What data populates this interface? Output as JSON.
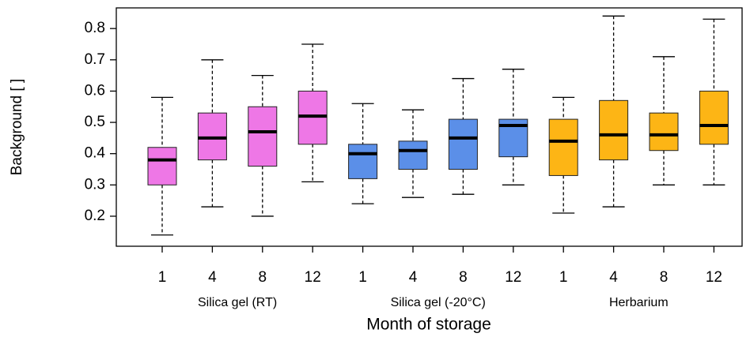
{
  "chart_data": {
    "type": "box",
    "ylabel": "Background [ ]",
    "xlabel": "Month of storage",
    "ylim": [
      0.104,
      0.866
    ],
    "yticks": [
      0.2,
      0.3,
      0.4,
      0.5,
      0.6,
      0.7,
      0.8
    ],
    "groups": [
      {
        "name": "Silica gel (RT)",
        "color": "#ee77e6",
        "categories": [
          "1",
          "4",
          "8",
          "12"
        ],
        "min": [
          0.14,
          0.23,
          0.2,
          0.31
        ],
        "q1": [
          0.3,
          0.38,
          0.36,
          0.43
        ],
        "median": [
          0.38,
          0.45,
          0.47,
          0.52
        ],
        "q3": [
          0.42,
          0.53,
          0.55,
          0.6
        ],
        "max": [
          0.58,
          0.7,
          0.65,
          0.75
        ]
      },
      {
        "name": "Silica gel (-20°C)",
        "color": "#5b8fe8",
        "categories": [
          "1",
          "4",
          "8",
          "12"
        ],
        "min": [
          0.24,
          0.26,
          0.27,
          0.3
        ],
        "q1": [
          0.32,
          0.35,
          0.35,
          0.39
        ],
        "median": [
          0.4,
          0.41,
          0.45,
          0.49
        ],
        "q3": [
          0.43,
          0.44,
          0.51,
          0.51
        ],
        "max": [
          0.56,
          0.54,
          0.64,
          0.67
        ]
      },
      {
        "name": "Herbarium",
        "color": "#fdb515",
        "categories": [
          "1",
          "4",
          "8",
          "12"
        ],
        "min": [
          0.21,
          0.23,
          0.3,
          0.3
        ],
        "q1": [
          0.33,
          0.38,
          0.41,
          0.43
        ],
        "median": [
          0.44,
          0.46,
          0.46,
          0.49
        ],
        "q3": [
          0.51,
          0.57,
          0.53,
          0.6
        ],
        "max": [
          0.58,
          0.84,
          0.71,
          0.83
        ]
      }
    ]
  }
}
